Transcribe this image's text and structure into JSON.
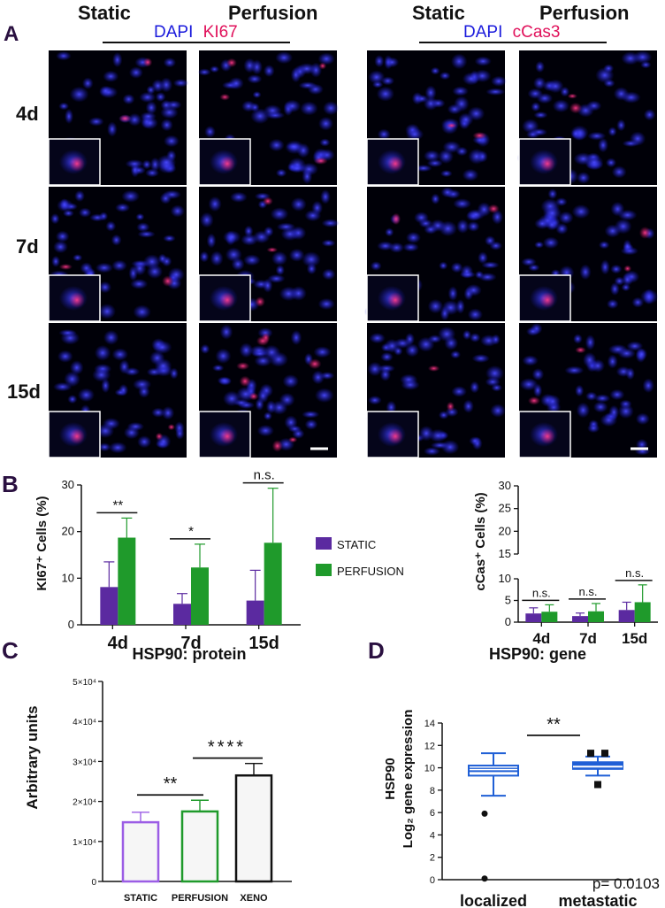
{
  "panels": {
    "A": {
      "letter": "A",
      "column_headers": [
        "Static",
        "Perfusion",
        "Static",
        "Perfusion"
      ],
      "stain_left": {
        "dapi": "DAPI",
        "marker": "KI67"
      },
      "stain_right": {
        "dapi": "DAPI",
        "marker": "cCas3"
      },
      "row_labels": [
        "4d",
        "7d",
        "15d"
      ],
      "colors": {
        "dapi": "#1a1adc",
        "marker": "#e0105a",
        "header": "#111111"
      }
    },
    "B": {
      "letter": "B"
    },
    "C": {
      "letter": "C"
    },
    "D": {
      "letter": "D"
    }
  },
  "legend_B": {
    "items": [
      {
        "label": "STATIC",
        "color": "#5b2aa0"
      },
      {
        "label": "PERFUSION",
        "color": "#1f9a2b"
      }
    ]
  },
  "chart_data": [
    {
      "id": "B-left",
      "type": "bar",
      "ylabel": "KI67⁺ Cells (%)",
      "categories": [
        "4d",
        "7d",
        "15d"
      ],
      "yticks": [
        "0",
        "10",
        "20",
        "30"
      ],
      "ylim": [
        0,
        30
      ],
      "series": [
        {
          "name": "STATIC",
          "values": [
            8.1,
            4.5,
            5.2
          ],
          "errors": [
            5.4,
            2.2,
            6.5
          ],
          "color": "#5b2aa0"
        },
        {
          "name": "PERFUSION",
          "values": [
            18.7,
            12.3,
            17.6
          ],
          "errors": [
            4.2,
            5.0,
            11.7
          ],
          "color": "#1f9a2b"
        }
      ],
      "annotations": [
        "**",
        "*",
        "n.s."
      ]
    },
    {
      "id": "B-right",
      "type": "bar",
      "ylabel": "cCas⁺ Cells (%)",
      "categories": [
        "4d",
        "7d",
        "15d"
      ],
      "yticks": [
        "0",
        "5",
        "10",
        "15",
        "20",
        "25",
        "30"
      ],
      "ylim": [
        0,
        30
      ],
      "axis_break": [
        10,
        15
      ],
      "series": [
        {
          "name": "STATIC",
          "values": [
            2.0,
            1.4,
            2.8
          ],
          "errors": [
            1.3,
            0.7,
            1.8
          ],
          "color": "#5b2aa0"
        },
        {
          "name": "PERFUSION",
          "values": [
            2.4,
            2.5,
            4.6
          ],
          "errors": [
            1.6,
            1.8,
            4.0
          ],
          "color": "#1f9a2b"
        }
      ],
      "annotations": [
        "n.s.",
        "n.s.",
        "n.s."
      ]
    },
    {
      "id": "C",
      "type": "bar",
      "title": "HSP90: protein",
      "ylabel": "Arbitrary units",
      "categories": [
        "STATIC",
        "PERFUSION",
        "XENO"
      ],
      "yticks": [
        "0",
        "1×10⁴",
        "2×10⁴",
        "3×10⁴",
        "4×10⁴",
        "5×10⁴"
      ],
      "ylim": [
        0,
        50000
      ],
      "values": [
        14800,
        17500,
        26500
      ],
      "errors": [
        2500,
        2800,
        3000
      ],
      "bar_colors": [
        "#9b5de5",
        "#1f9a2b",
        "#111111"
      ],
      "annotations": [
        "**",
        "****"
      ]
    },
    {
      "id": "D",
      "type": "box",
      "title": "HSP90: gene",
      "ylabel_line1": "HSP90",
      "ylabel_line2": "Log₂ gene expression",
      "categories": [
        "localized",
        "metastatic"
      ],
      "yticks": [
        "0",
        "2",
        "4",
        "6",
        "8",
        "10",
        "12",
        "14"
      ],
      "ylim": [
        0,
        14
      ],
      "boxes": [
        {
          "whisker_low": 7.5,
          "q1": 9.3,
          "median": 9.7,
          "q3": 10.2,
          "whisker_high": 11.3,
          "outliers": [
            5.9,
            0.1
          ]
        },
        {
          "whisker_low": 9.3,
          "q1": 9.9,
          "median": 10.1,
          "q3": 10.5,
          "whisker_high": 11.0,
          "outliers": [
            11.3,
            11.3,
            8.5
          ]
        }
      ],
      "annotation": "**",
      "pvalue": "p= 0.0103"
    }
  ]
}
